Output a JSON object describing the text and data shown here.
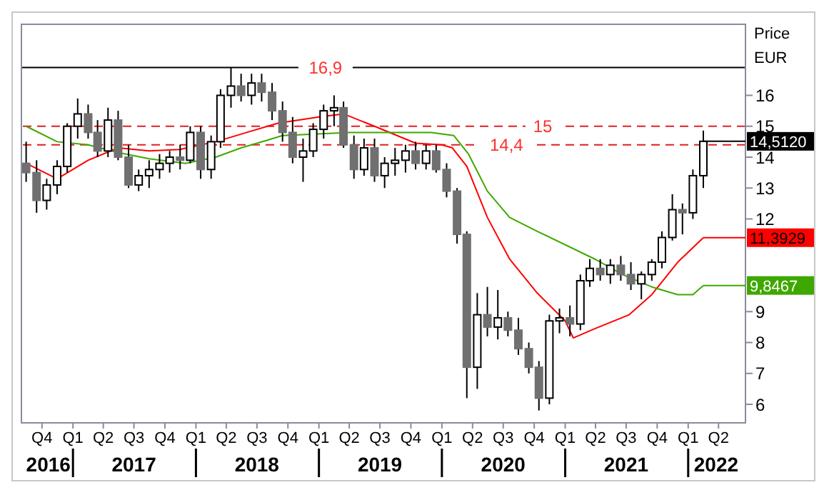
{
  "chart_data": {
    "type": "candlestick",
    "ylabel": "Price EUR",
    "x": [
      "2016-08-15",
      "2016-09-15",
      "2016-10-15",
      "2016-11-15",
      "2016-12-15",
      "2017-01-15",
      "2017-02-15",
      "2017-03-15",
      "2017-04-15",
      "2017-05-15",
      "2017-06-15",
      "2017-07-15",
      "2017-08-15",
      "2017-09-15",
      "2017-10-15",
      "2017-11-15",
      "2017-12-15",
      "2018-01-15",
      "2018-02-15",
      "2018-03-15",
      "2018-04-15",
      "2018-05-15",
      "2018-06-15",
      "2018-07-15",
      "2018-08-15",
      "2018-09-15",
      "2018-10-15",
      "2018-11-15",
      "2018-12-15",
      "2019-01-15",
      "2019-02-15",
      "2019-03-15",
      "2019-04-15",
      "2019-05-15",
      "2019-06-15",
      "2019-07-15",
      "2019-08-15",
      "2019-09-15",
      "2019-10-15",
      "2019-11-15",
      "2019-12-15",
      "2020-01-15",
      "2020-02-15",
      "2020-03-15",
      "2020-04-15",
      "2020-05-15",
      "2020-06-15",
      "2020-07-15",
      "2020-08-15",
      "2020-09-15",
      "2020-10-15",
      "2020-11-15",
      "2020-12-15",
      "2021-01-15",
      "2021-02-15",
      "2021-03-15",
      "2021-04-15",
      "2021-05-15",
      "2021-06-15",
      "2021-07-15",
      "2021-08-15",
      "2021-09-15",
      "2021-10-15",
      "2021-11-15",
      "2021-12-15",
      "2022-01-15",
      "2022-02-15"
    ],
    "ohlc": [
      [
        13.8,
        14.5,
        13.2,
        13.5
      ],
      [
        13.5,
        13.9,
        12.2,
        12.6
      ],
      [
        12.6,
        13.3,
        12.3,
        13.1
      ],
      [
        13.1,
        13.9,
        12.8,
        13.7
      ],
      [
        13.7,
        15.1,
        13.5,
        15.0
      ],
      [
        15.0,
        15.9,
        14.6,
        15.4
      ],
      [
        15.4,
        15.7,
        14.6,
        14.8
      ],
      [
        14.8,
        15.2,
        14.0,
        14.2
      ],
      [
        14.2,
        15.6,
        14.0,
        15.2
      ],
      [
        15.2,
        15.5,
        13.9,
        14.0
      ],
      [
        14.0,
        14.4,
        13.0,
        13.1
      ],
      [
        13.1,
        13.6,
        12.9,
        13.4
      ],
      [
        13.4,
        13.9,
        13.0,
        13.6
      ],
      [
        13.6,
        14.1,
        13.3,
        13.8
      ],
      [
        13.8,
        14.2,
        13.5,
        14.0
      ],
      [
        14.0,
        14.4,
        13.6,
        13.9
      ],
      [
        13.9,
        15.0,
        13.8,
        14.8
      ],
      [
        14.8,
        15.0,
        13.3,
        13.6
      ],
      [
        13.6,
        14.7,
        13.3,
        14.5
      ],
      [
        14.5,
        16.2,
        14.3,
        16.0
      ],
      [
        16.0,
        16.9,
        15.6,
        16.3
      ],
      [
        16.3,
        16.7,
        15.8,
        16.0
      ],
      [
        16.0,
        16.7,
        15.7,
        16.4
      ],
      [
        16.4,
        16.7,
        15.8,
        16.1
      ],
      [
        16.1,
        16.4,
        15.2,
        15.5
      ],
      [
        15.5,
        15.8,
        14.5,
        14.8
      ],
      [
        14.8,
        15.3,
        13.8,
        14.0
      ],
      [
        14.0,
        14.6,
        13.2,
        14.2
      ],
      [
        14.2,
        15.1,
        14.0,
        14.9
      ],
      [
        14.9,
        15.7,
        14.6,
        15.5
      ],
      [
        15.5,
        16.0,
        15.0,
        15.6
      ],
      [
        15.6,
        15.8,
        14.3,
        14.4
      ],
      [
        14.4,
        14.7,
        13.3,
        13.6
      ],
      [
        13.6,
        14.6,
        13.4,
        14.3
      ],
      [
        14.3,
        14.6,
        13.2,
        13.4
      ],
      [
        13.4,
        14.0,
        13.0,
        13.8
      ],
      [
        13.8,
        14.3,
        13.4,
        13.9
      ],
      [
        13.9,
        14.4,
        13.5,
        14.2
      ],
      [
        14.2,
        14.5,
        13.6,
        13.8
      ],
      [
        13.8,
        14.4,
        13.6,
        14.2
      ],
      [
        14.2,
        14.4,
        13.5,
        13.6
      ],
      [
        13.6,
        13.8,
        12.7,
        12.9
      ],
      [
        12.9,
        13.0,
        11.2,
        11.5
      ],
      [
        11.5,
        11.6,
        6.2,
        7.2
      ],
      [
        7.2,
        9.6,
        6.5,
        8.9
      ],
      [
        8.9,
        9.8,
        8.2,
        8.5
      ],
      [
        8.5,
        9.7,
        8.1,
        8.8
      ],
      [
        8.8,
        9.0,
        8.2,
        8.4
      ],
      [
        8.4,
        8.8,
        7.6,
        7.8
      ],
      [
        7.8,
        8.0,
        7.0,
        7.2
      ],
      [
        7.2,
        7.4,
        5.8,
        6.2
      ],
      [
        6.2,
        8.9,
        6.0,
        8.7
      ],
      [
        8.7,
        9.1,
        8.3,
        8.8
      ],
      [
        8.8,
        9.2,
        8.2,
        8.6
      ],
      [
        8.6,
        10.2,
        8.4,
        10.0
      ],
      [
        10.0,
        10.7,
        9.8,
        10.4
      ],
      [
        10.4,
        10.7,
        10.0,
        10.2
      ],
      [
        10.2,
        10.7,
        9.9,
        10.5
      ],
      [
        10.5,
        10.8,
        10.0,
        10.2
      ],
      [
        10.2,
        10.6,
        9.7,
        9.9
      ],
      [
        9.9,
        10.3,
        9.4,
        10.2
      ],
      [
        10.2,
        10.7,
        10.0,
        10.6
      ],
      [
        10.6,
        11.6,
        10.4,
        11.4
      ],
      [
        11.4,
        12.8,
        11.3,
        12.3
      ],
      [
        12.3,
        12.5,
        11.5,
        12.2
      ],
      [
        12.2,
        13.6,
        12.0,
        13.4
      ],
      [
        13.4,
        14.86,
        13.0,
        14.512
      ]
    ],
    "series": [
      {
        "type": "line",
        "color": "#ff0000",
        "x": [
          "2016-08-15",
          "2016-11-15",
          "2017-02-15",
          "2017-05-15",
          "2017-08-15",
          "2017-11-15",
          "2018-03-01",
          "2018-06-01",
          "2018-09-01",
          "2019-01-01",
          "2019-03-15",
          "2019-06-15",
          "2019-10-15",
          "2020-01-01",
          "2020-02-01",
          "2020-03-15",
          "2020-05-15",
          "2020-07-20",
          "2020-10-10",
          "2021-01-01",
          "2021-01-25",
          "2021-03-30",
          "2021-07-10",
          "2021-09-15",
          "2021-12-01",
          "2022-02-15"
        ],
        "values": [
          13.8,
          13.3,
          13.9,
          14.3,
          14.2,
          14.25,
          14.5,
          14.8,
          15.1,
          15.3,
          15.4,
          15.0,
          14.45,
          14.4,
          14.3,
          13.7,
          12.05,
          10.7,
          9.6,
          8.7,
          8.15,
          8.45,
          8.9,
          9.55,
          10.6,
          11.3929
        ],
        "value_labels": [
          null,
          null,
          null,
          null,
          null,
          null,
          null,
          null,
          null,
          null,
          null,
          null,
          null,
          null,
          null,
          null,
          null,
          null,
          null,
          null,
          null,
          null,
          null,
          null,
          null,
          "11,3929"
        ]
      },
      {
        "type": "line",
        "color": "#3fa800",
        "x": [
          "2016-08-15",
          "2016-11-15",
          "2017-02-15",
          "2017-05-15",
          "2017-08-15",
          "2017-12-01",
          "2018-03-01",
          "2018-05-15",
          "2018-08-01",
          "2018-09-15",
          "2019-04-01",
          "2019-12-01",
          "2020-02-05",
          "2020-03-20",
          "2020-05-15",
          "2020-07-20",
          "2020-10-10",
          "2021-03-30",
          "2021-06-20",
          "2021-09-15",
          "2021-12-01",
          "2022-01-15",
          "2022-02-15"
        ],
        "values": [
          15.0,
          14.5,
          14.4,
          14.15,
          13.95,
          13.8,
          14.0,
          14.3,
          14.55,
          14.7,
          14.8,
          14.8,
          14.7,
          14.1,
          12.9,
          12.05,
          11.6,
          10.7,
          10.2,
          9.8,
          9.55,
          9.55,
          9.8467
        ],
        "value_labels": [
          null,
          null,
          null,
          null,
          null,
          null,
          null,
          null,
          null,
          null,
          null,
          null,
          null,
          null,
          null,
          null,
          null,
          null,
          null,
          null,
          null,
          null,
          "9,8467"
        ]
      }
    ],
    "annotations": [
      {
        "text": "14,5120",
        "x": "2022-02-15",
        "y": 14.512
      }
    ],
    "ref_lines": [
      {
        "axis": "y",
        "value": 16.9,
        "label": "16,9",
        "color": "#000000",
        "line_style": "solid"
      },
      {
        "axis": "y",
        "value": 15,
        "label": "15",
        "color": "#e02020",
        "line_style": "dashed"
      },
      {
        "axis": "y",
        "value": 14.4,
        "label": "14,4",
        "color": "#e02020",
        "line_style": "dashed"
      }
    ],
    "xlim": [
      "2016-08-01",
      "2022-06-20"
    ],
    "xticks": [
      {
        "value": "2016-10-01",
        "label": "Q4"
      },
      {
        "value": "2017-01-01",
        "label": "Q1"
      },
      {
        "value": "2017-04-01",
        "label": "Q2"
      },
      {
        "value": "2017-07-01",
        "label": "Q3"
      },
      {
        "value": "2017-10-01",
        "label": "Q4"
      },
      {
        "value": "2018-01-01",
        "label": "Q1"
      },
      {
        "value": "2018-04-01",
        "label": "Q2"
      },
      {
        "value": "2018-07-01",
        "label": "Q3"
      },
      {
        "value": "2018-10-01",
        "label": "Q4"
      },
      {
        "value": "2019-01-01",
        "label": "Q1"
      },
      {
        "value": "2019-04-01",
        "label": "Q2"
      },
      {
        "value": "2019-07-01",
        "label": "Q3"
      },
      {
        "value": "2019-10-01",
        "label": "Q4"
      },
      {
        "value": "2020-01-01",
        "label": "Q1"
      },
      {
        "value": "2020-04-01",
        "label": "Q2"
      },
      {
        "value": "2020-07-01",
        "label": "Q3"
      },
      {
        "value": "2020-10-01",
        "label": "Q4"
      },
      {
        "value": "2021-01-01",
        "label": "Q1"
      },
      {
        "value": "2021-04-01",
        "label": "Q2"
      },
      {
        "value": "2021-07-01",
        "label": "Q3"
      },
      {
        "value": "2021-10-01",
        "label": "Q4"
      },
      {
        "value": "2022-01-01",
        "label": "Q1"
      },
      {
        "value": "2022-04-01",
        "label": "Q2"
      }
    ],
    "x2lim": [
      "2016-08-01",
      "2022-06-20"
    ],
    "x2ticks": [
      {
        "value": "2016-10-20",
        "label": "2016"
      },
      {
        "value": "2017-01-01",
        "label": null
      },
      {
        "value": "2017-07-01",
        "label": "2017"
      },
      {
        "value": "2018-01-01",
        "label": null
      },
      {
        "value": "2018-07-01",
        "label": "2018"
      },
      {
        "value": "2019-01-01",
        "label": null
      },
      {
        "value": "2019-07-01",
        "label": "2019"
      },
      {
        "value": "2020-01-01",
        "label": null
      },
      {
        "value": "2020-07-01",
        "label": "2020"
      },
      {
        "value": "2021-01-01",
        "label": null
      },
      {
        "value": "2021-07-01",
        "label": "2021"
      },
      {
        "value": "2022-01-01",
        "label": null
      },
      {
        "value": "2022-03-25",
        "label": "2022"
      }
    ],
    "ylim": [
      5.4,
      18.3
    ],
    "yticks": [
      6,
      7,
      8,
      9,
      12,
      13,
      14,
      15,
      16
    ],
    "grid": false,
    "legend": false
  }
}
